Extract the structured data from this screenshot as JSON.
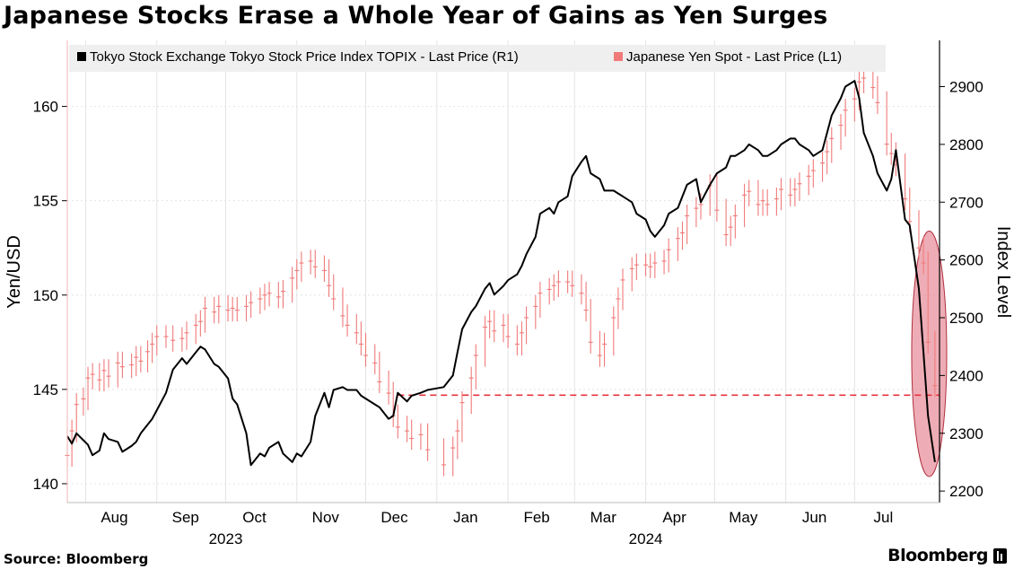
{
  "title": "Japanese Stocks Erase a Whole Year of Gains as Yen Surges",
  "source": "Source: Bloomberg",
  "brand": "Bloomberg",
  "colors": {
    "topix": "#000000",
    "yen": "#f07a7a",
    "highlight_fill": "#e0697a",
    "reference_line": "#e8323c",
    "grid": "#e4e4e4",
    "legend_bg": "#efefef"
  },
  "chart_data": {
    "type": "line",
    "legend_position": "top",
    "grid": true,
    "x_range": [
      "2023-07-24",
      "2024-08-07"
    ],
    "x_ticks": [
      {
        "date": "2023-08-01",
        "label": "Aug"
      },
      {
        "date": "2023-09-01",
        "label": "Sep"
      },
      {
        "date": "2023-10-01",
        "label": "Oct"
      },
      {
        "date": "2023-11-01",
        "label": "Nov"
      },
      {
        "date": "2023-12-01",
        "label": "Dec"
      },
      {
        "date": "2024-01-01",
        "label": "Jan"
      },
      {
        "date": "2024-02-01",
        "label": "Feb"
      },
      {
        "date": "2024-03-01",
        "label": "Mar"
      },
      {
        "date": "2024-04-01",
        "label": "Apr"
      },
      {
        "date": "2024-05-01",
        "label": "May"
      },
      {
        "date": "2024-06-01",
        "label": "Jun"
      },
      {
        "date": "2024-07-01",
        "label": "Jul"
      }
    ],
    "year_labels": [
      {
        "date": "2023-10-01",
        "label": "2023"
      },
      {
        "date": "2024-04-01",
        "label": "2024"
      }
    ],
    "left_axis": {
      "label": "Yen/USD",
      "range": [
        139,
        163.5
      ],
      "ticks": [
        140,
        145,
        150,
        155,
        160
      ]
    },
    "right_axis": {
      "label": "Index Level",
      "range": [
        2180,
        2980
      ],
      "ticks": [
        2200,
        2300,
        2400,
        2500,
        2600,
        2700,
        2800,
        2900
      ]
    },
    "reference_line": {
      "axis": "right",
      "value": 2366,
      "from": "2023-12-15",
      "to": "2024-08-07"
    },
    "highlight_ellipse": {
      "date_from": "2024-07-29",
      "date_to": "2024-08-07",
      "right_value_from": 2225,
      "right_value_to": 2650
    },
    "series": [
      {
        "name": "Tokyo Stock Exchange Tokyo Stock Price Index TOPIX - Last Price (R1)",
        "axis": "right",
        "style": "line",
        "x": [
          "2023-07-24",
          "2023-07-26",
          "2023-07-28",
          "2023-07-31",
          "2023-08-02",
          "2023-08-04",
          "2023-08-07",
          "2023-08-09",
          "2023-08-11",
          "2023-08-15",
          "2023-08-17",
          "2023-08-21",
          "2023-08-23",
          "2023-08-25",
          "2023-08-28",
          "2023-08-30",
          "2023-09-01",
          "2023-09-05",
          "2023-09-08",
          "2023-09-12",
          "2023-09-14",
          "2023-09-18",
          "2023-09-20",
          "2023-09-22",
          "2023-09-26",
          "2023-09-28",
          "2023-10-02",
          "2023-10-04",
          "2023-10-06",
          "2023-10-10",
          "2023-10-12",
          "2023-10-16",
          "2023-10-18",
          "2023-10-20",
          "2023-10-24",
          "2023-10-26",
          "2023-10-30",
          "2023-11-01",
          "2023-11-03",
          "2023-11-07",
          "2023-11-09",
          "2023-11-13",
          "2023-11-15",
          "2023-11-17",
          "2023-11-21",
          "2023-11-23",
          "2023-11-27",
          "2023-11-29",
          "2023-12-01",
          "2023-12-05",
          "2023-12-07",
          "2023-12-11",
          "2023-12-13",
          "2023-12-15",
          "2023-12-19",
          "2023-12-21",
          "2023-12-25",
          "2023-12-28",
          "2024-01-04",
          "2024-01-08",
          "2024-01-10",
          "2024-01-12",
          "2024-01-16",
          "2024-01-18",
          "2024-01-22",
          "2024-01-24",
          "2024-01-26",
          "2024-01-30",
          "2024-02-01",
          "2024-02-05",
          "2024-02-07",
          "2024-02-09",
          "2024-02-13",
          "2024-02-15",
          "2024-02-19",
          "2024-02-21",
          "2024-02-23",
          "2024-02-27",
          "2024-02-29",
          "2024-03-04",
          "2024-03-06",
          "2024-03-08",
          "2024-03-12",
          "2024-03-14",
          "2024-03-18",
          "2024-03-20",
          "2024-03-22",
          "2024-03-26",
          "2024-03-28",
          "2024-04-01",
          "2024-04-03",
          "2024-04-05",
          "2024-04-09",
          "2024-04-11",
          "2024-04-15",
          "2024-04-17",
          "2024-04-19",
          "2024-04-23",
          "2024-04-25",
          "2024-04-29",
          "2024-05-02",
          "2024-05-06",
          "2024-05-08",
          "2024-05-10",
          "2024-05-14",
          "2024-05-16",
          "2024-05-20",
          "2024-05-22",
          "2024-05-24",
          "2024-05-28",
          "2024-05-30",
          "2024-06-03",
          "2024-06-05",
          "2024-06-07",
          "2024-06-11",
          "2024-06-13",
          "2024-06-17",
          "2024-06-19",
          "2024-06-21",
          "2024-06-25",
          "2024-06-27",
          "2024-07-01",
          "2024-07-03",
          "2024-07-05",
          "2024-07-09",
          "2024-07-11",
          "2024-07-15",
          "2024-07-17",
          "2024-07-19",
          "2024-07-23",
          "2024-07-25",
          "2024-07-29",
          "2024-07-31",
          "2024-08-02",
          "2024-08-05"
        ],
        "values": [
          2295,
          2282,
          2300,
          2288,
          2280,
          2262,
          2270,
          2300,
          2290,
          2285,
          2268,
          2278,
          2285,
          2300,
          2315,
          2325,
          2340,
          2370,
          2410,
          2430,
          2420,
          2440,
          2450,
          2445,
          2420,
          2415,
          2395,
          2360,
          2350,
          2300,
          2245,
          2265,
          2260,
          2275,
          2285,
          2265,
          2250,
          2265,
          2260,
          2285,
          2330,
          2370,
          2345,
          2375,
          2380,
          2375,
          2375,
          2365,
          2360,
          2350,
          2345,
          2325,
          2330,
          2370,
          2355,
          2365,
          2370,
          2375,
          2380,
          2400,
          2440,
          2480,
          2510,
          2520,
          2550,
          2560,
          2540,
          2555,
          2565,
          2575,
          2590,
          2610,
          2640,
          2680,
          2690,
          2680,
          2700,
          2710,
          2745,
          2770,
          2780,
          2750,
          2740,
          2720,
          2720,
          2715,
          2710,
          2700,
          2680,
          2670,
          2650,
          2640,
          2660,
          2680,
          2690,
          2710,
          2730,
          2740,
          2700,
          2730,
          2750,
          2760,
          2780,
          2780,
          2790,
          2800,
          2790,
          2780,
          2780,
          2790,
          2800,
          2810,
          2810,
          2800,
          2790,
          2780,
          2790,
          2820,
          2850,
          2880,
          2900,
          2910,
          2880,
          2820,
          2780,
          2750,
          2720,
          2740,
          2790,
          2670,
          2660,
          2550,
          2440,
          2330,
          2250
        ]
      },
      {
        "name": "Japanese Yen Spot - Last Price (L1)",
        "axis": "left",
        "style": "bars",
        "x": [
          "2023-07-24",
          "2023-07-26",
          "2023-07-28",
          "2023-07-31",
          "2023-08-02",
          "2023-08-04",
          "2023-08-07",
          "2023-08-09",
          "2023-08-11",
          "2023-08-15",
          "2023-08-17",
          "2023-08-21",
          "2023-08-23",
          "2023-08-25",
          "2023-08-28",
          "2023-08-30",
          "2023-09-01",
          "2023-09-05",
          "2023-09-08",
          "2023-09-12",
          "2023-09-14",
          "2023-09-18",
          "2023-09-20",
          "2023-09-22",
          "2023-09-26",
          "2023-09-28",
          "2023-10-02",
          "2023-10-04",
          "2023-10-06",
          "2023-10-10",
          "2023-10-12",
          "2023-10-16",
          "2023-10-18",
          "2023-10-20",
          "2023-10-24",
          "2023-10-26",
          "2023-10-30",
          "2023-11-01",
          "2023-11-03",
          "2023-11-07",
          "2023-11-09",
          "2023-11-13",
          "2023-11-15",
          "2023-11-17",
          "2023-11-21",
          "2023-11-23",
          "2023-11-27",
          "2023-11-29",
          "2023-12-01",
          "2023-12-05",
          "2023-12-07",
          "2023-12-11",
          "2023-12-13",
          "2023-12-15",
          "2023-12-19",
          "2023-12-21",
          "2023-12-25",
          "2023-12-28",
          "2024-01-04",
          "2024-01-08",
          "2024-01-10",
          "2024-01-12",
          "2024-01-16",
          "2024-01-18",
          "2024-01-22",
          "2024-01-24",
          "2024-01-26",
          "2024-01-30",
          "2024-02-01",
          "2024-02-05",
          "2024-02-07",
          "2024-02-09",
          "2024-02-13",
          "2024-02-15",
          "2024-02-19",
          "2024-02-21",
          "2024-02-23",
          "2024-02-27",
          "2024-02-29",
          "2024-03-04",
          "2024-03-06",
          "2024-03-08",
          "2024-03-12",
          "2024-03-14",
          "2024-03-18",
          "2024-03-20",
          "2024-03-22",
          "2024-03-26",
          "2024-03-28",
          "2024-04-01",
          "2024-04-03",
          "2024-04-05",
          "2024-04-09",
          "2024-04-11",
          "2024-04-15",
          "2024-04-17",
          "2024-04-19",
          "2024-04-23",
          "2024-04-25",
          "2024-04-29",
          "2024-05-02",
          "2024-05-06",
          "2024-05-08",
          "2024-05-10",
          "2024-05-14",
          "2024-05-16",
          "2024-05-20",
          "2024-05-22",
          "2024-05-24",
          "2024-05-28",
          "2024-05-30",
          "2024-06-03",
          "2024-06-05",
          "2024-06-07",
          "2024-06-11",
          "2024-06-13",
          "2024-06-17",
          "2024-06-19",
          "2024-06-21",
          "2024-06-25",
          "2024-06-27",
          "2024-07-01",
          "2024-07-03",
          "2024-07-05",
          "2024-07-09",
          "2024-07-11",
          "2024-07-15",
          "2024-07-17",
          "2024-07-19",
          "2024-07-23",
          "2024-07-25",
          "2024-07-29",
          "2024-07-31",
          "2024-08-02",
          "2024-08-05"
        ],
        "values": [
          141.5,
          142.8,
          144.2,
          144.5,
          145.6,
          145.8,
          145.5,
          146.0,
          145.7,
          146.4,
          146.2,
          146.3,
          146.7,
          146.5,
          147.0,
          147.4,
          147.8,
          147.8,
          147.6,
          147.7,
          148.0,
          148.4,
          148.6,
          149.3,
          149.1,
          149.4,
          149.2,
          149.3,
          149.2,
          149.4,
          149.6,
          149.8,
          150.0,
          150.1,
          149.9,
          150.2,
          150.9,
          151.3,
          151.7,
          151.8,
          151.5,
          151.3,
          150.5,
          149.8,
          148.9,
          148.4,
          148.0,
          147.4,
          146.8,
          146.4,
          145.4,
          144.8,
          143.6,
          143.0,
          142.8,
          142.4,
          142.6,
          141.8,
          141.0,
          141.9,
          142.8,
          144.3,
          145.6,
          146.8,
          148.3,
          148.6,
          148.1,
          148.4,
          147.8,
          147.4,
          148.0,
          148.8,
          149.4,
          150.1,
          150.3,
          150.5,
          150.7,
          150.7,
          150.5,
          150.1,
          149.2,
          147.5,
          146.8,
          147.4,
          148.8,
          149.8,
          150.8,
          151.4,
          151.6,
          151.6,
          151.5,
          151.7,
          151.8,
          152.4,
          153.0,
          153.3,
          154.2,
          154.6,
          154.8,
          155.8,
          154.5,
          153.2,
          153.6,
          154.2,
          155.3,
          155.5,
          154.8,
          155.0,
          154.8,
          155.1,
          155.6,
          155.3,
          155.6,
          155.9,
          156.3,
          156.6,
          157.0,
          157.6,
          158.3,
          159.0,
          159.8,
          160.4,
          161.3,
          161.5,
          161.0,
          160.2,
          158.0,
          157.5,
          156.9,
          155.1,
          153.9,
          152.5,
          151.7,
          147.5,
          145.2
        ]
      }
    ]
  }
}
